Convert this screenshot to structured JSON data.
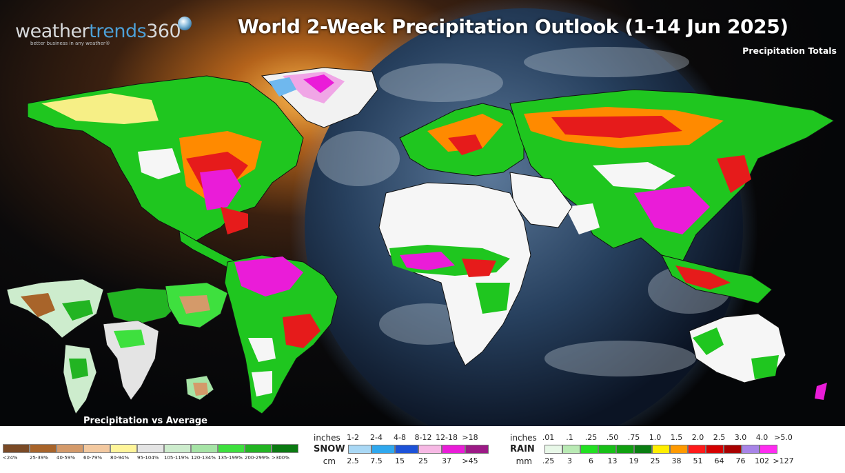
{
  "header": {
    "logo_word_1": "weather",
    "logo_word_2": "trends",
    "logo_word_3": "360",
    "logo_tagline": "better business in any weather®",
    "title": "World 2-Week Precipitation Outlook (1-14 Jun 2025)",
    "subtitle": "Precipitation Totals"
  },
  "inset": {
    "label": "Precipitation vs Average"
  },
  "avg_legend": {
    "items": [
      {
        "label": "<24%",
        "color": "#7a4a26"
      },
      {
        "label": "25-39%",
        "color": "#a8642a"
      },
      {
        "label": "40-59%",
        "color": "#d49a6a"
      },
      {
        "label": "60-79%",
        "color": "#f3c9a0"
      },
      {
        "label": "80-94%",
        "color": "#fff59a"
      },
      {
        "label": "95-104%",
        "color": "#e4e4e4"
      },
      {
        "label": "105-119%",
        "color": "#cdeccd"
      },
      {
        "label": "120-134%",
        "color": "#a6e4a6"
      },
      {
        "label": "135-199%",
        "color": "#3ee03e"
      },
      {
        "label": "200-299%",
        "color": "#22b422"
      },
      {
        "label": ">300%",
        "color": "#0b7a12"
      }
    ]
  },
  "snow_legend": {
    "kind": "SNOW",
    "inches_label": "inches",
    "cm_label": "cm",
    "inches": [
      "1-2",
      "2-4",
      "4-8",
      "8-12",
      "12-18",
      ">18"
    ],
    "cm": [
      "2.5",
      "7.5",
      "15",
      "25",
      "37",
      ">45"
    ],
    "colors": [
      "#a9d8f5",
      "#2fa8ee",
      "#1d52d8",
      "#f6b8e4",
      "#ea1cd8",
      "#9c1a86"
    ]
  },
  "rain_legend": {
    "kind": "RAIN",
    "inches_label": "inches",
    "mm_label": "mm",
    "inches": [
      ".01",
      ".1",
      ".25",
      ".50",
      ".75",
      "1.0",
      "1.5",
      "2.0",
      "2.5",
      "3.0",
      "4.0",
      ">5.0"
    ],
    "mm": [
      ".25",
      "3",
      "6",
      "13",
      "19",
      "25",
      "38",
      "51",
      "64",
      "76",
      "102",
      ">127"
    ],
    "colors": [
      "#e8f8e8",
      "#b9eab4",
      "#22e022",
      "#18c018",
      "#10a010",
      "#0a7e12",
      "#ffee00",
      "#ff9a00",
      "#ff1a1a",
      "#d40000",
      "#a80000",
      "#a884e8",
      "#ff2cf0"
    ]
  }
}
